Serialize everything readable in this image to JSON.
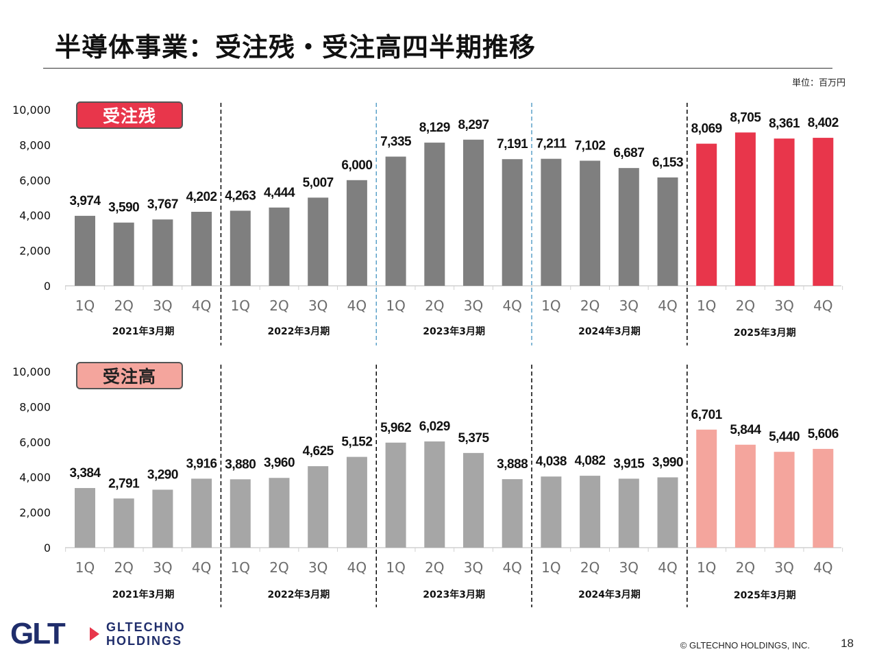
{
  "title": "半導体事業：受注残・受注高四半期推移",
  "unit": "単位：百万円",
  "colors": {
    "past": "#7f7f7f",
    "current": "#e8364b",
    "past_light": "#a6a6a6",
    "current_light": "#f4a59d"
  },
  "chart_data": [
    {
      "type": "bar",
      "title": "受注残",
      "categories": [
        "1Q",
        "2Q",
        "3Q",
        "4Q",
        "1Q",
        "2Q",
        "3Q",
        "4Q",
        "1Q",
        "2Q",
        "3Q",
        "4Q",
        "1Q",
        "2Q",
        "3Q",
        "4Q",
        "1Q",
        "2Q",
        "3Q",
        "4Q"
      ],
      "groups": [
        "2021年3月期",
        "2022年3月期",
        "2023年3月期",
        "2024年3月期",
        "2025年3月期"
      ],
      "values": [
        3974,
        3590,
        3767,
        4202,
        4263,
        4444,
        5007,
        6000,
        7335,
        8129,
        8297,
        7191,
        7211,
        7102,
        6687,
        6153,
        8069,
        8705,
        8361,
        8402
      ],
      "value_labels": [
        "3,974",
        "3,590",
        "3,767",
        "4,202",
        "4,263",
        "4,444",
        "5,007",
        "6,000",
        "7,335",
        "8,129",
        "8,297",
        "7,191",
        "7,211",
        "7,102",
        "6,687",
        "6,153",
        "8,069",
        "8,705",
        "8,361",
        "8,402"
      ],
      "ylim": [
        0,
        10000
      ],
      "yticks": [
        "0",
        "2,000",
        "4,000",
        "6,000",
        "8,000",
        "10,000"
      ],
      "grid": false,
      "highlight_group": 4
    },
    {
      "type": "bar",
      "title": "受注高",
      "categories": [
        "1Q",
        "2Q",
        "3Q",
        "4Q",
        "1Q",
        "2Q",
        "3Q",
        "4Q",
        "1Q",
        "2Q",
        "3Q",
        "4Q",
        "1Q",
        "2Q",
        "3Q",
        "4Q",
        "1Q",
        "2Q",
        "3Q",
        "4Q"
      ],
      "groups": [
        "2021年3月期",
        "2022年3月期",
        "2023年3月期",
        "2024年3月期",
        "2025年3月期"
      ],
      "values": [
        3384,
        2791,
        3290,
        3916,
        3880,
        3960,
        4625,
        5152,
        5962,
        6029,
        5375,
        3888,
        4038,
        4082,
        3915,
        3990,
        6701,
        5844,
        5440,
        5606
      ],
      "value_labels": [
        "3,384",
        "2,791",
        "3,290",
        "3,916",
        "3,880",
        "3,960",
        "4,625",
        "5,152",
        "5,962",
        "6,029",
        "5,375",
        "3,888",
        "4,038",
        "4,082",
        "3,915",
        "3,990",
        "6,701",
        "5,844",
        "5,440",
        "5,606"
      ],
      "ylim": [
        0,
        10000
      ],
      "yticks": [
        "0",
        "2,000",
        "4,000",
        "6,000",
        "8,000",
        "10,000"
      ],
      "grid": false,
      "highlight_group": 4
    }
  ],
  "footer": {
    "logo_mark": "GLT",
    "logo_line1": "GLTECHNO",
    "logo_line2": "HOLDINGS",
    "copyright": "© GLTECHNO HOLDINGS, INC.",
    "page": "18"
  }
}
